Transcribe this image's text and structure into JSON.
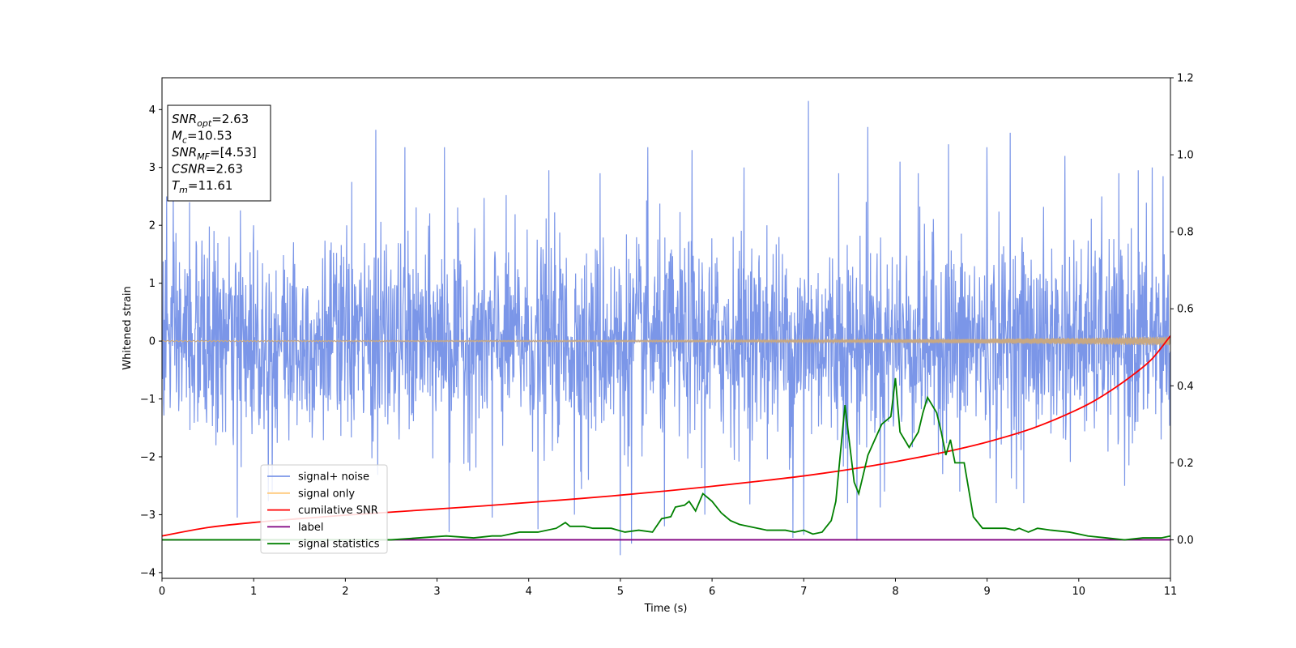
{
  "chart_data": {
    "type": "line",
    "xlabel": "Time (s)",
    "ylabel_left": "Whitened strain",
    "ylabel_right": "",
    "xlim": [
      0,
      11
    ],
    "ylim_left": [
      -4.1,
      4.55
    ],
    "ylim_right": [
      -0.1,
      1.2
    ],
    "xticks": [
      0,
      1,
      2,
      3,
      4,
      5,
      6,
      7,
      8,
      9,
      10,
      11
    ],
    "yticks_left": [
      -4,
      -3,
      -2,
      -1,
      0,
      1,
      2,
      3,
      4
    ],
    "yticks_right": [
      0.0,
      0.2,
      0.4,
      0.6,
      0.8,
      1.0,
      1.2
    ],
    "grid": false,
    "legend_placement": "lower-left",
    "annotation": {
      "lines": [
        {
          "var": "SNR",
          "sub": "opt",
          "value": "=2.63"
        },
        {
          "var": "M",
          "sub": "c",
          "value": "=10.53"
        },
        {
          "var": "SNR",
          "sub": "MF",
          "value": "=[4.53]"
        },
        {
          "var": "CSNR",
          "sub": "",
          "value": "=2.63"
        },
        {
          "var": "T",
          "sub": "m",
          "value": "=11.61"
        }
      ]
    },
    "series": [
      {
        "name": "signal+ noise",
        "axis": "left",
        "color": "#7b96e8",
        "style": "noise",
        "sigma": 0.85,
        "duration": 11,
        "samples": 2600,
        "spikes": [
          [
            0.05,
            2.5
          ],
          [
            0.3,
            2.4
          ],
          [
            0.82,
            -3.05
          ],
          [
            1.0,
            2.0
          ],
          [
            1.2,
            -2.6
          ],
          [
            2.07,
            2.75
          ],
          [
            2.33,
            3.65
          ],
          [
            2.65,
            3.35
          ],
          [
            3.08,
            3.35
          ],
          [
            3.13,
            -3.3
          ],
          [
            3.6,
            -3.05
          ],
          [
            4.1,
            -3.25
          ],
          [
            4.22,
            2.95
          ],
          [
            4.5,
            -3.0
          ],
          [
            4.65,
            -2.4
          ],
          [
            4.78,
            2.9
          ],
          [
            5.0,
            -3.7
          ],
          [
            5.12,
            -3.5
          ],
          [
            5.3,
            3.35
          ],
          [
            5.48,
            -3.2
          ],
          [
            5.78,
            3.3
          ],
          [
            5.92,
            -3.0
          ],
          [
            6.35,
            3.0
          ],
          [
            6.6,
            2.0
          ],
          [
            6.88,
            -3.4
          ],
          [
            7.0,
            -3.35
          ],
          [
            7.05,
            4.15
          ],
          [
            7.38,
            2.9
          ],
          [
            7.48,
            -2.8
          ],
          [
            7.58,
            -3.45
          ],
          [
            7.7,
            3.7
          ],
          [
            7.88,
            -2.6
          ],
          [
            8.05,
            3.1
          ],
          [
            8.25,
            2.9
          ],
          [
            8.58,
            3.4
          ],
          [
            8.7,
            -2.6
          ],
          [
            9.0,
            3.35
          ],
          [
            9.1,
            -2.8
          ],
          [
            9.25,
            3.6
          ],
          [
            9.4,
            -2.8
          ],
          [
            9.85,
            3.2
          ],
          [
            10.25,
            2.5
          ],
          [
            10.5,
            -2.5
          ],
          [
            10.65,
            2.95
          ],
          [
            10.8,
            3.0
          ],
          [
            10.92,
            2.85
          ]
        ]
      },
      {
        "name": "signal only",
        "axis": "left",
        "color": "#ffc87a",
        "style": "chirp",
        "amp_start": 0.01,
        "amp_end": 0.08,
        "color_drawn": "#c8a882"
      },
      {
        "name": "cumilative SNR",
        "axis": "right",
        "color": "#ff0000",
        "style": "curve",
        "x": [
          0,
          0.5,
          1,
          1.5,
          2,
          2.5,
          3,
          3.5,
          4,
          4.5,
          5,
          5.5,
          6,
          6.5,
          7,
          7.5,
          8,
          8.5,
          9,
          9.5,
          10,
          10.3,
          10.6,
          10.8,
          11
        ],
        "y": [
          0.01,
          0.032,
          0.045,
          0.055,
          0.064,
          0.072,
          0.08,
          0.088,
          0.097,
          0.106,
          0.116,
          0.127,
          0.139,
          0.152,
          0.166,
          0.183,
          0.203,
          0.226,
          0.254,
          0.29,
          0.34,
          0.38,
          0.43,
          0.47,
          0.53
        ]
      },
      {
        "name": "label",
        "axis": "right",
        "color": "#800080",
        "style": "curve",
        "x": [
          0,
          11
        ],
        "y": [
          0,
          0
        ]
      },
      {
        "name": "signal statistics",
        "axis": "right",
        "color": "#008000",
        "style": "curve",
        "x": [
          0,
          0.5,
          1.0,
          1.5,
          2.0,
          2.5,
          2.8,
          3.1,
          3.4,
          3.6,
          3.7,
          3.9,
          4.1,
          4.3,
          4.4,
          4.45,
          4.6,
          4.7,
          4.9,
          5.05,
          5.2,
          5.35,
          5.45,
          5.55,
          5.6,
          5.7,
          5.75,
          5.82,
          5.9,
          6.0,
          6.1,
          6.2,
          6.3,
          6.4,
          6.6,
          6.8,
          6.9,
          7.0,
          7.1,
          7.2,
          7.3,
          7.35,
          7.45,
          7.55,
          7.6,
          7.7,
          7.85,
          7.95,
          8.0,
          8.05,
          8.15,
          8.25,
          8.3,
          8.35,
          8.45,
          8.5,
          8.55,
          8.6,
          8.65,
          8.75,
          8.85,
          8.95,
          9.05,
          9.2,
          9.3,
          9.35,
          9.45,
          9.55,
          9.7,
          9.9,
          10.1,
          10.3,
          10.5,
          10.7,
          10.9,
          11.0
        ],
        "y": [
          0.0,
          0.0,
          0.0,
          0.0,
          0.0,
          0.0,
          0.005,
          0.01,
          0.005,
          0.01,
          0.01,
          0.02,
          0.02,
          0.03,
          0.045,
          0.035,
          0.035,
          0.03,
          0.03,
          0.02,
          0.025,
          0.02,
          0.055,
          0.06,
          0.085,
          0.09,
          0.1,
          0.075,
          0.12,
          0.1,
          0.07,
          0.05,
          0.04,
          0.035,
          0.025,
          0.025,
          0.02,
          0.025,
          0.015,
          0.02,
          0.05,
          0.1,
          0.35,
          0.15,
          0.12,
          0.22,
          0.3,
          0.32,
          0.42,
          0.28,
          0.24,
          0.28,
          0.33,
          0.37,
          0.33,
          0.28,
          0.22,
          0.26,
          0.2,
          0.2,
          0.06,
          0.03,
          0.03,
          0.03,
          0.025,
          0.03,
          0.02,
          0.03,
          0.025,
          0.02,
          0.01,
          0.005,
          0.0,
          0.005,
          0.005,
          0.01
        ]
      }
    ]
  }
}
